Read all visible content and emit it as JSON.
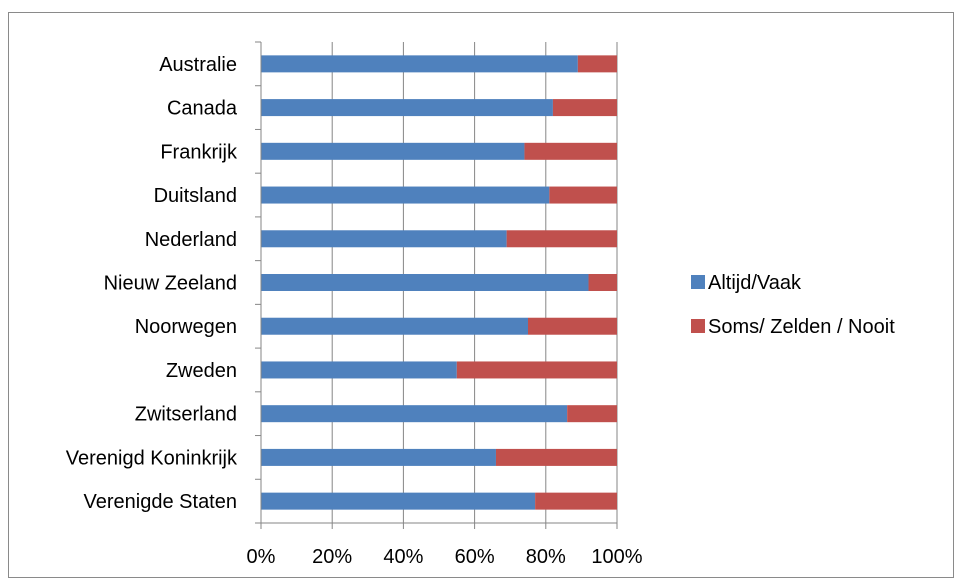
{
  "chart_data": {
    "type": "bar",
    "orientation": "horizontal",
    "stacked": "percent",
    "title": "",
    "xlabel": "",
    "ylabel": "",
    "xlim": [
      0,
      100
    ],
    "x_ticks": [
      "0%",
      "20%",
      "40%",
      "60%",
      "80%",
      "100%"
    ],
    "grid": "vertical",
    "legend_position": "right",
    "categories": [
      "Australie",
      "Canada",
      "Frankrijk",
      "Duitsland",
      "Nederland",
      "Nieuw Zeeland",
      "Noorwegen",
      "Zweden",
      "Zwitserland",
      "Verenigd Koninkrijk",
      "Verenigde Staten"
    ],
    "series": [
      {
        "name": "Altijd/Vaak",
        "color": "#4f81bd",
        "values": [
          89,
          82,
          74,
          81,
          69,
          92,
          75,
          55,
          86,
          66,
          77
        ]
      },
      {
        "name": "Soms/ Zelden / Nooit",
        "color": "#c0504d",
        "values": [
          11,
          18,
          26,
          19,
          31,
          8,
          25,
          45,
          14,
          34,
          23
        ]
      }
    ]
  }
}
